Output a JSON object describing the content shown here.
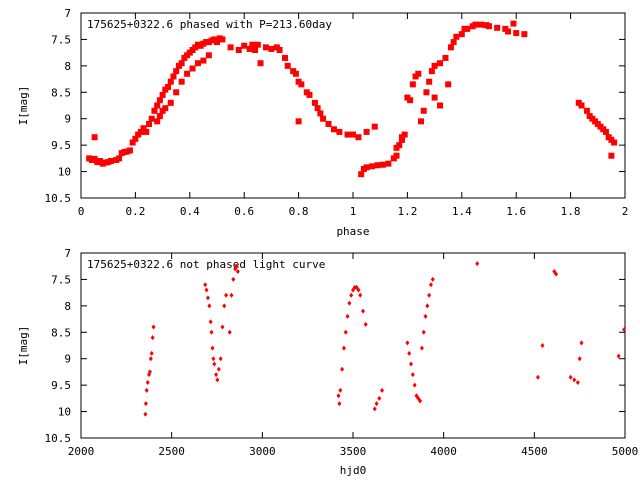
{
  "chart_data": [
    {
      "type": "scatter",
      "title": "175625+0322.6 phased with P=213.60day",
      "xlabel": "phase",
      "ylabel": "I[mag]",
      "xlim": [
        0,
        2
      ],
      "ylim": [
        10.5,
        7
      ],
      "y_inverted": true,
      "grid": false,
      "legend": "none",
      "marker": "filled-square",
      "color": "#ff0000",
      "x_ticks": [
        "0",
        "0.2",
        "0.4",
        "0.6",
        "0.8",
        "1",
        "1.2",
        "1.4",
        "1.6",
        "1.8",
        "2"
      ],
      "y_ticks": [
        "7",
        "7.5",
        "8",
        "8.5",
        "9",
        "9.5",
        "10",
        "10.5"
      ],
      "series": [
        {
          "points": [
            [
              0.03,
              9.75
            ],
            [
              0.04,
              9.78
            ],
            [
              0.05,
              9.76
            ],
            [
              0.05,
              9.35
            ],
            [
              0.06,
              9.82
            ],
            [
              0.07,
              9.8
            ],
            [
              0.08,
              9.85
            ],
            [
              0.09,
              9.83
            ],
            [
              0.1,
              9.82
            ],
            [
              0.11,
              9.8
            ],
            [
              0.13,
              9.78
            ],
            [
              0.14,
              9.75
            ],
            [
              0.15,
              9.65
            ],
            [
              0.16,
              9.63
            ],
            [
              0.17,
              9.62
            ],
            [
              0.18,
              9.6
            ],
            [
              0.19,
              9.45
            ],
            [
              0.2,
              9.38
            ],
            [
              0.21,
              9.3
            ],
            [
              0.22,
              9.25
            ],
            [
              0.23,
              9.18
            ],
            [
              0.24,
              9.25
            ],
            [
              0.25,
              9.1
            ],
            [
              0.26,
              9.0
            ],
            [
              0.27,
              8.85
            ],
            [
              0.28,
              8.75
            ],
            [
              0.28,
              9.05
            ],
            [
              0.29,
              8.65
            ],
            [
              0.29,
              8.95
            ],
            [
              0.3,
              8.55
            ],
            [
              0.3,
              8.85
            ],
            [
              0.31,
              8.45
            ],
            [
              0.31,
              8.8
            ],
            [
              0.32,
              8.4
            ],
            [
              0.33,
              8.3
            ],
            [
              0.33,
              8.7
            ],
            [
              0.34,
              8.2
            ],
            [
              0.35,
              8.1
            ],
            [
              0.35,
              8.5
            ],
            [
              0.36,
              8.0
            ],
            [
              0.37,
              7.95
            ],
            [
              0.37,
              8.3
            ],
            [
              0.38,
              7.85
            ],
            [
              0.39,
              7.8
            ],
            [
              0.39,
              8.15
            ],
            [
              0.4,
              7.75
            ],
            [
              0.41,
              7.7
            ],
            [
              0.41,
              8.05
            ],
            [
              0.42,
              7.65
            ],
            [
              0.43,
              7.6
            ],
            [
              0.43,
              7.95
            ],
            [
              0.44,
              7.62
            ],
            [
              0.45,
              7.58
            ],
            [
              0.45,
              7.9
            ],
            [
              0.46,
              7.55
            ],
            [
              0.47,
              7.55
            ],
            [
              0.47,
              7.8
            ],
            [
              0.48,
              7.52
            ],
            [
              0.49,
              7.5
            ],
            [
              0.5,
              7.55
            ],
            [
              0.51,
              7.48
            ],
            [
              0.52,
              7.5
            ],
            [
              0.55,
              7.65
            ],
            [
              0.58,
              7.7
            ],
            [
              0.6,
              7.62
            ],
            [
              0.62,
              7.68
            ],
            [
              0.63,
              7.6
            ],
            [
              0.64,
              7.7
            ],
            [
              0.65,
              7.6
            ],
            [
              0.66,
              7.95
            ],
            [
              0.68,
              7.65
            ],
            [
              0.7,
              7.68
            ],
            [
              0.72,
              7.65
            ],
            [
              0.73,
              7.7
            ],
            [
              0.75,
              7.85
            ],
            [
              0.76,
              8.0
            ],
            [
              0.78,
              8.1
            ],
            [
              0.79,
              8.15
            ],
            [
              0.8,
              8.3
            ],
            [
              0.81,
              8.35
            ],
            [
              0.8,
              9.05
            ],
            [
              0.83,
              8.5
            ],
            [
              0.84,
              8.55
            ],
            [
              0.86,
              8.7
            ],
            [
              0.87,
              8.8
            ],
            [
              0.88,
              8.9
            ],
            [
              0.89,
              9.0
            ],
            [
              0.91,
              9.1
            ],
            [
              0.93,
              9.2
            ],
            [
              0.95,
              9.25
            ],
            [
              0.98,
              9.3
            ],
            [
              1.0,
              9.3
            ],
            [
              1.02,
              9.35
            ],
            [
              1.05,
              9.25
            ],
            [
              1.08,
              9.15
            ],
            [
              1.03,
              10.05
            ],
            [
              1.04,
              9.95
            ],
            [
              1.05,
              9.92
            ],
            [
              1.07,
              9.9
            ],
            [
              1.09,
              9.88
            ],
            [
              1.11,
              9.87
            ],
            [
              1.13,
              9.85
            ],
            [
              1.15,
              9.75
            ],
            [
              1.16,
              9.55
            ],
            [
              1.17,
              9.5
            ],
            [
              1.18,
              9.35
            ],
            [
              1.19,
              9.3
            ],
            [
              1.18,
              9.4
            ],
            [
              1.16,
              9.7
            ],
            [
              1.2,
              8.6
            ],
            [
              1.21,
              8.65
            ],
            [
              1.22,
              8.35
            ],
            [
              1.23,
              8.2
            ],
            [
              1.24,
              8.15
            ],
            [
              1.25,
              9.05
            ],
            [
              1.26,
              8.85
            ],
            [
              1.27,
              8.5
            ],
            [
              1.28,
              8.3
            ],
            [
              1.29,
              8.1
            ],
            [
              1.3,
              8.0
            ],
            [
              1.32,
              7.95
            ],
            [
              1.34,
              7.85
            ],
            [
              1.3,
              8.6
            ],
            [
              1.32,
              8.75
            ],
            [
              1.35,
              8.35
            ],
            [
              1.36,
              7.65
            ],
            [
              1.37,
              7.55
            ],
            [
              1.38,
              7.45
            ],
            [
              1.4,
              7.4
            ],
            [
              1.41,
              7.3
            ],
            [
              1.42,
              7.3
            ],
            [
              1.44,
              7.25
            ],
            [
              1.45,
              7.22
            ],
            [
              1.47,
              7.22
            ],
            [
              1.49,
              7.23
            ],
            [
              1.5,
              7.25
            ],
            [
              1.53,
              7.28
            ],
            [
              1.56,
              7.3
            ],
            [
              1.57,
              7.35
            ],
            [
              1.59,
              7.2
            ],
            [
              1.6,
              7.38
            ],
            [
              1.63,
              7.4
            ],
            [
              1.83,
              8.7
            ],
            [
              1.84,
              8.75
            ],
            [
              1.86,
              8.85
            ],
            [
              1.87,
              8.95
            ],
            [
              1.88,
              9.0
            ],
            [
              1.89,
              9.05
            ],
            [
              1.9,
              9.1
            ],
            [
              1.91,
              9.15
            ],
            [
              1.92,
              9.2
            ],
            [
              1.93,
              9.25
            ],
            [
              1.94,
              9.35
            ],
            [
              1.95,
              9.4
            ],
            [
              1.96,
              9.45
            ],
            [
              1.95,
              9.7
            ]
          ]
        }
      ]
    },
    {
      "type": "scatter",
      "title": "175625+0322.6 not phased light curve",
      "xlabel": "hjd0",
      "ylabel": "I[mag]",
      "xlim": [
        2000,
        5000
      ],
      "ylim": [
        10.5,
        7
      ],
      "y_inverted": true,
      "grid": false,
      "legend": "none",
      "marker": "small-diamond",
      "color": "#ff0000",
      "x_ticks": [
        "2000",
        "2500",
        "3000",
        "3500",
        "4000",
        "4500",
        "5000"
      ],
      "y_ticks": [
        "7",
        "7.5",
        "8",
        "8.5",
        "9",
        "9.5",
        "10",
        "10.5"
      ],
      "series": [
        {
          "points": [
            [
              2355,
              10.05
            ],
            [
              2358,
              9.85
            ],
            [
              2362,
              9.6
            ],
            [
              2368,
              9.45
            ],
            [
              2375,
              9.3
            ],
            [
              2380,
              9.25
            ],
            [
              2385,
              9.0
            ],
            [
              2390,
              8.9
            ],
            [
              2395,
              8.6
            ],
            [
              2400,
              8.4
            ],
            [
              2685,
              7.6
            ],
            [
              2692,
              7.7
            ],
            [
              2700,
              7.85
            ],
            [
              2708,
              8.0
            ],
            [
              2715,
              8.3
            ],
            [
              2720,
              8.5
            ],
            [
              2725,
              8.8
            ],
            [
              2730,
              9.0
            ],
            [
              2735,
              9.1
            ],
            [
              2745,
              9.3
            ],
            [
              2752,
              9.4
            ],
            [
              2760,
              9.2
            ],
            [
              2770,
              9.0
            ],
            [
              2780,
              8.4
            ],
            [
              2790,
              8.0
            ],
            [
              2800,
              7.8
            ],
            [
              2820,
              8.5
            ],
            [
              2830,
              7.8
            ],
            [
              2840,
              7.5
            ],
            [
              2850,
              7.3
            ],
            [
              2858,
              7.25
            ],
            [
              2865,
              7.35
            ],
            [
              3420,
              9.7
            ],
            [
              3425,
              9.85
            ],
            [
              3430,
              9.6
            ],
            [
              3440,
              9.2
            ],
            [
              3450,
              8.8
            ],
            [
              3460,
              8.5
            ],
            [
              3470,
              8.2
            ],
            [
              3480,
              7.95
            ],
            [
              3490,
              7.8
            ],
            [
              3500,
              7.7
            ],
            [
              3510,
              7.65
            ],
            [
              3520,
              7.65
            ],
            [
              3530,
              7.7
            ],
            [
              3540,
              7.8
            ],
            [
              3555,
              8.1
            ],
            [
              3570,
              8.35
            ],
            [
              3620,
              9.95
            ],
            [
              3630,
              9.85
            ],
            [
              3645,
              9.75
            ],
            [
              3660,
              9.6
            ],
            [
              3800,
              8.7
            ],
            [
              3810,
              8.9
            ],
            [
              3820,
              9.1
            ],
            [
              3830,
              9.3
            ],
            [
              3840,
              9.5
            ],
            [
              3850,
              9.7
            ],
            [
              3860,
              9.75
            ],
            [
              3870,
              9.8
            ],
            [
              3880,
              8.8
            ],
            [
              3890,
              8.5
            ],
            [
              3900,
              8.2
            ],
            [
              3910,
              8.0
            ],
            [
              3920,
              7.8
            ],
            [
              3930,
              7.6
            ],
            [
              3940,
              7.5
            ],
            [
              4185,
              7.2
            ],
            [
              4520,
              9.35
            ],
            [
              4545,
              8.75
            ],
            [
              4610,
              7.35
            ],
            [
              4620,
              7.4
            ],
            [
              4700,
              9.35
            ],
            [
              4720,
              9.4
            ],
            [
              4740,
              9.45
            ],
            [
              4750,
              9.0
            ],
            [
              4760,
              8.7
            ],
            [
              4965,
              8.95
            ],
            [
              4995,
              8.45
            ]
          ]
        }
      ]
    }
  ]
}
